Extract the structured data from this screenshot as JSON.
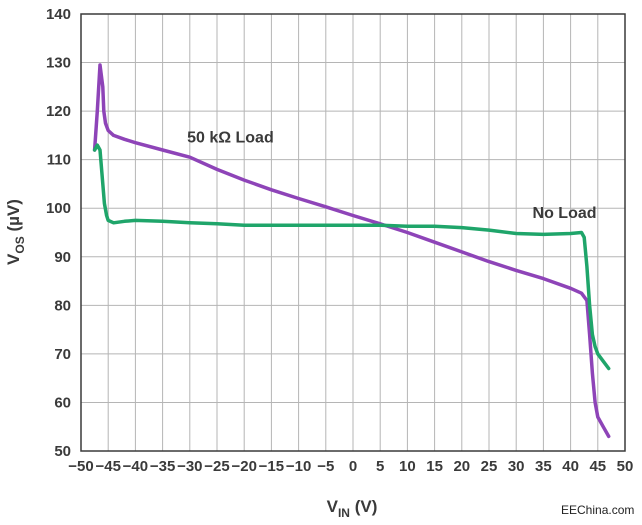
{
  "chart_data": {
    "type": "line",
    "title": "",
    "xlabel": {
      "main": "V",
      "sub": "IN",
      "unit": " (V)"
    },
    "ylabel": {
      "main": "V",
      "sub": "OS",
      "unit": " (µV)"
    },
    "xlim": [
      -50,
      50
    ],
    "ylim": [
      50,
      140
    ],
    "grid": true,
    "x_ticks": [
      -50,
      -45,
      -40,
      -35,
      -30,
      -25,
      -20,
      -15,
      -10,
      -5,
      0,
      5,
      10,
      15,
      20,
      25,
      30,
      35,
      40,
      45,
      50
    ],
    "x_tick_labels": [
      "−50",
      "−45",
      "−40",
      "−35",
      "−30",
      "−25",
      "−20",
      "−15",
      "−10",
      "−5",
      "0",
      "5",
      "10",
      "15",
      "20",
      "25",
      "30",
      "35",
      "40",
      "45",
      "50"
    ],
    "y_ticks": [
      50,
      60,
      70,
      80,
      90,
      100,
      110,
      120,
      130,
      140
    ],
    "y_tick_labels": [
      "50",
      "60",
      "70",
      "80",
      "90",
      "100",
      "110",
      "120",
      "130",
      "140"
    ],
    "series": [
      {
        "name": "50 kΩ Load",
        "color": "#8e44b8",
        "x": [
          -47.5,
          -47,
          -46.5,
          -46,
          -45.8,
          -45.5,
          -45,
          -44,
          -42,
          -40,
          -35,
          -30,
          -25,
          -20,
          -15,
          -10,
          -5,
          0,
          5,
          10,
          15,
          20,
          25,
          30,
          35,
          40,
          42,
          43,
          43.5,
          44,
          44.5,
          45,
          46,
          47
        ],
        "values": [
          112,
          120,
          129.5,
          125,
          120,
          117.5,
          116,
          115,
          114.2,
          113.5,
          112,
          110.5,
          108,
          105.8,
          103.8,
          102,
          100.3,
          98.5,
          96.8,
          95,
          93,
          91,
          89,
          87.2,
          85.5,
          83.5,
          82.5,
          81,
          74,
          66,
          60,
          57,
          55,
          53
        ]
      },
      {
        "name": "No Load",
        "color": "#1fa56a",
        "x": [
          -47.5,
          -47,
          -46.5,
          -46,
          -45.7,
          -45.3,
          -45,
          -44,
          -42,
          -40,
          -35,
          -30,
          -25,
          -20,
          -15,
          -10,
          -5,
          0,
          5,
          10,
          15,
          20,
          25,
          30,
          35,
          40,
          42,
          42.5,
          43,
          43.5,
          44,
          44.5,
          45,
          46,
          47
        ],
        "values": [
          112,
          113,
          112,
          105,
          101,
          98.5,
          97.5,
          97,
          97.3,
          97.5,
          97.3,
          97,
          96.8,
          96.5,
          96.5,
          96.5,
          96.5,
          96.5,
          96.5,
          96.3,
          96.3,
          96,
          95.5,
          94.8,
          94.6,
          94.8,
          95,
          94,
          88,
          80,
          74,
          71.5,
          70,
          68.5,
          67
        ]
      }
    ],
    "annotations": [
      {
        "text": "50 kΩ Load",
        "x": -30.5,
        "y": 113.5
      },
      {
        "text": "No Load",
        "x": 33,
        "y": 98
      }
    ]
  },
  "watermark": "EEChina.com"
}
